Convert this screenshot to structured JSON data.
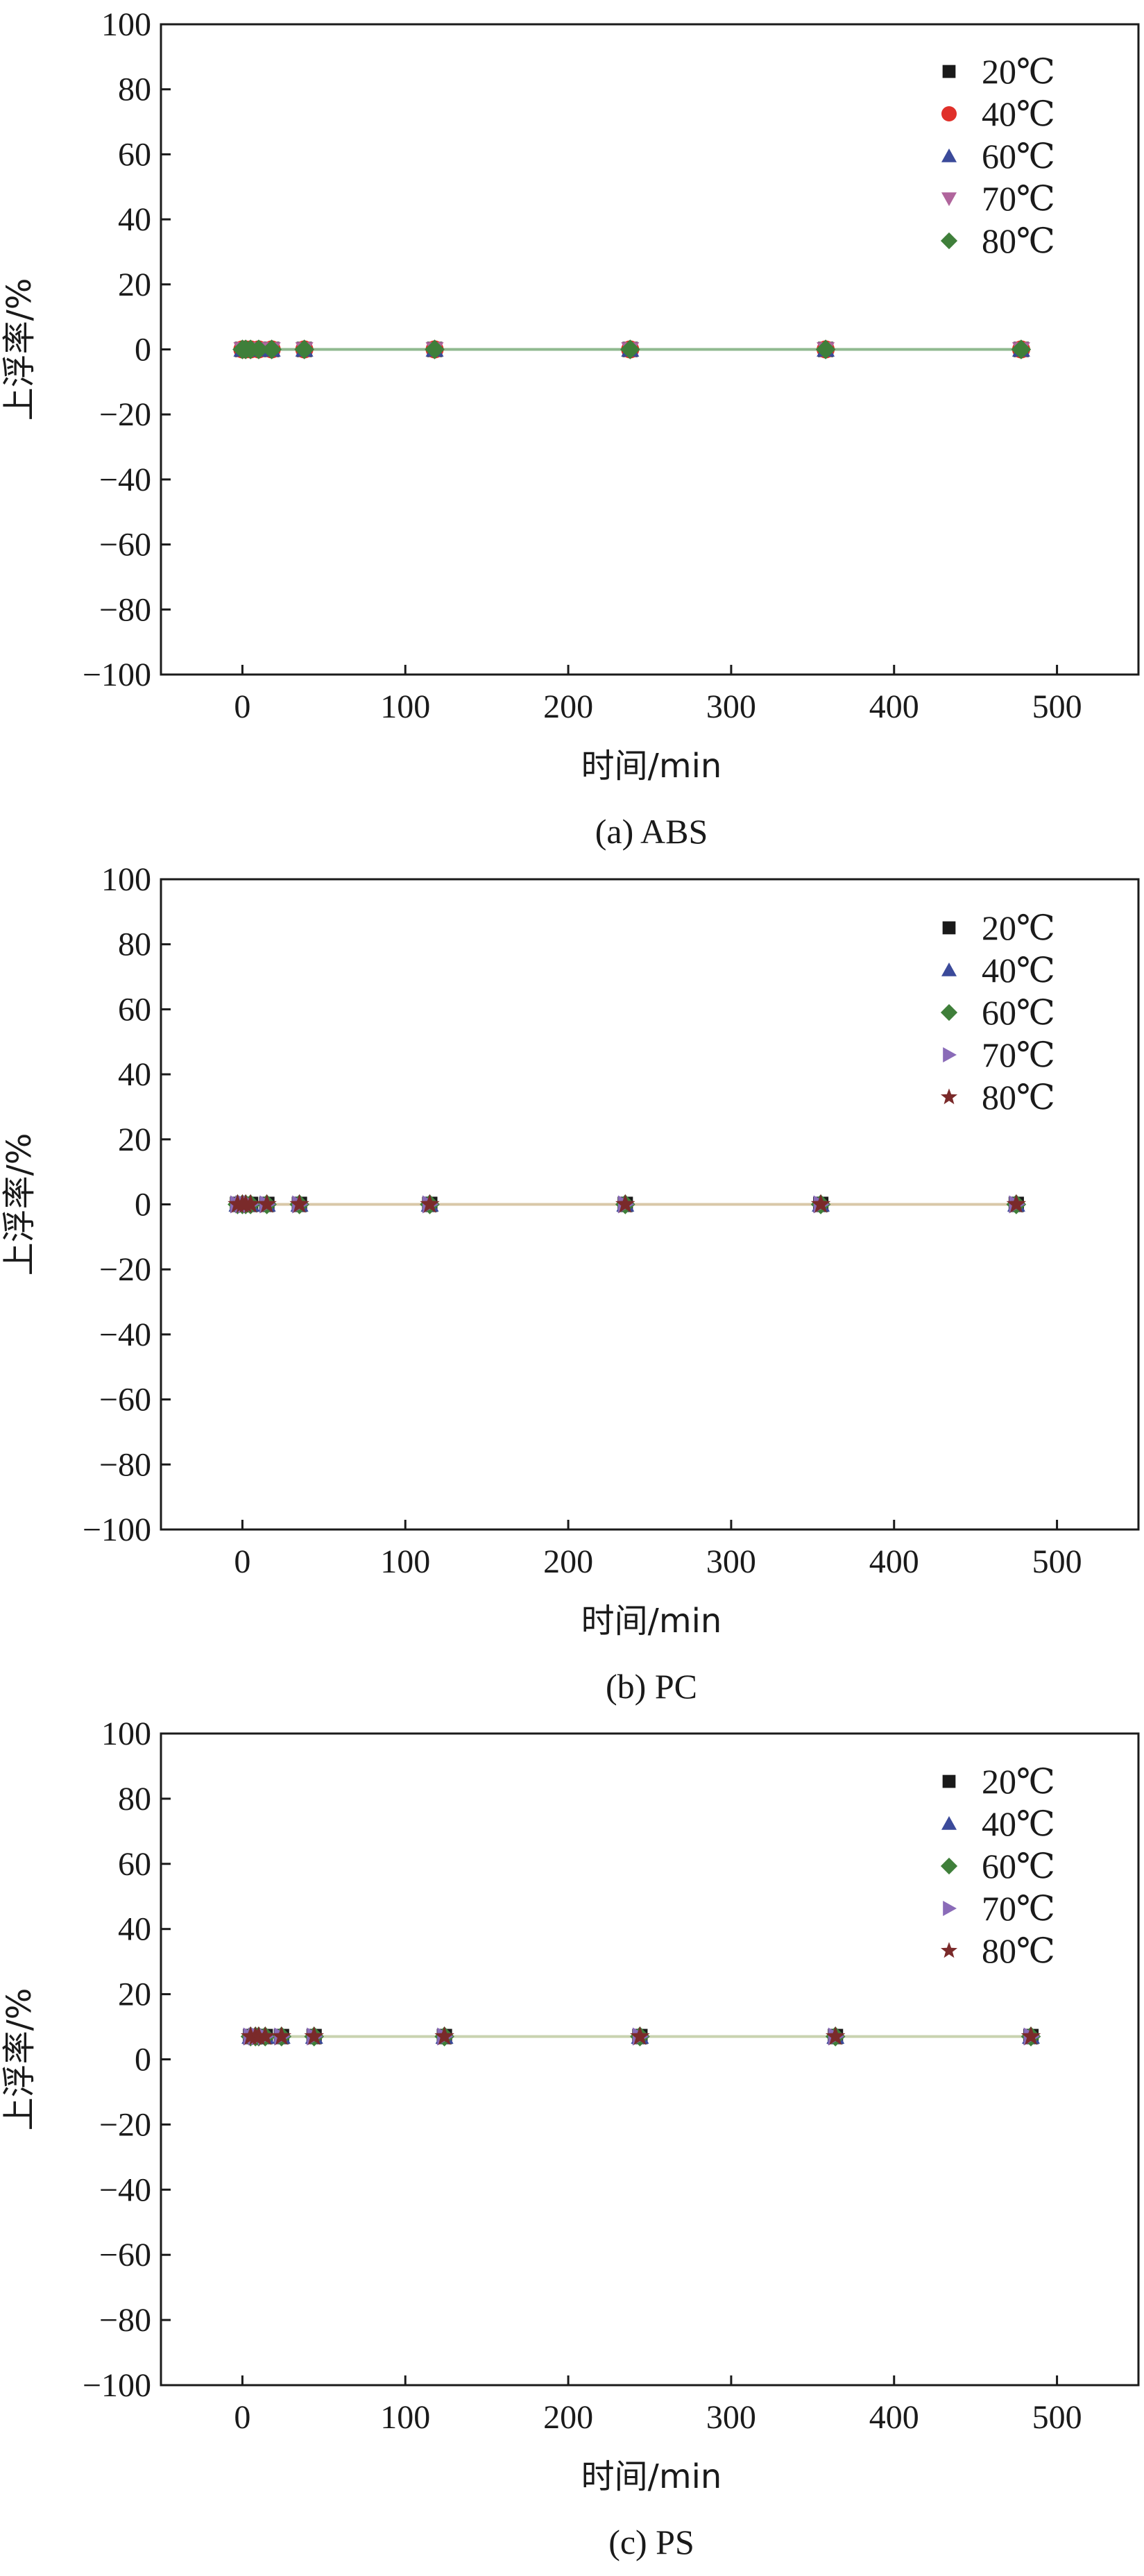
{
  "chart_data": [
    {
      "type": "scatter",
      "caption": "(a) ABS",
      "xlabel": "时间/min",
      "ylabel": "上浮率/%",
      "xlim": [
        -50,
        550
      ],
      "ylim": [
        -100,
        100
      ],
      "xticks": [
        0,
        100,
        200,
        300,
        400,
        500
      ],
      "yticks": [
        100,
        80,
        60,
        40,
        20,
        0,
        -20,
        -40,
        -60,
        -80,
        -100
      ],
      "legend_position": "top-right",
      "connect_line_color": "#8fb98f",
      "series": [
        {
          "name": "20℃",
          "marker": "square",
          "color": "#1a1a1a",
          "x": [
            0,
            2,
            5,
            10,
            18,
            38,
            118,
            238,
            358,
            478
          ],
          "y": [
            0,
            0,
            0,
            0,
            0,
            0,
            0,
            0,
            0,
            0
          ]
        },
        {
          "name": "40℃",
          "marker": "circle",
          "color": "#e0302a",
          "x": [
            0,
            2,
            5,
            10,
            18,
            38,
            118,
            238,
            358,
            478
          ],
          "y": [
            0,
            0,
            0,
            0,
            0,
            0,
            0,
            0,
            0,
            0
          ]
        },
        {
          "name": "60℃",
          "marker": "triangle-up",
          "color": "#3b4a9a",
          "x": [
            0,
            2,
            5,
            10,
            18,
            38,
            118,
            238,
            358,
            478
          ],
          "y": [
            0,
            0,
            0,
            0,
            0,
            0,
            0,
            0,
            0,
            0
          ]
        },
        {
          "name": "70℃",
          "marker": "triangle-down",
          "color": "#b0659c",
          "x": [
            0,
            2,
            5,
            10,
            18,
            38,
            118,
            238,
            358,
            478
          ],
          "y": [
            0,
            0,
            0,
            0,
            0,
            0,
            0,
            0,
            0,
            0
          ]
        },
        {
          "name": "80℃",
          "marker": "diamond",
          "color": "#3f7f3a",
          "x": [
            0,
            2,
            5,
            10,
            18,
            38,
            118,
            238,
            358,
            478
          ],
          "y": [
            0,
            0,
            0,
            0,
            0,
            0,
            0,
            0,
            0,
            0
          ]
        }
      ]
    },
    {
      "type": "scatter",
      "caption": "(b) PC",
      "xlabel": "时间/min",
      "ylabel": "上浮率/%",
      "xlim": [
        -50,
        550
      ],
      "ylim": [
        -100,
        100
      ],
      "xticks": [
        0,
        100,
        200,
        300,
        400,
        500
      ],
      "yticks": [
        100,
        80,
        60,
        40,
        20,
        0,
        -20,
        -40,
        -60,
        -80,
        -100
      ],
      "legend_position": "top-right",
      "connect_line_color": "#d9c8a8",
      "series": [
        {
          "name": "20℃",
          "marker": "square",
          "color": "#1a1a1a",
          "x": [
            -3,
            0,
            2,
            5,
            15,
            35,
            115,
            235,
            355,
            475
          ],
          "y": [
            0,
            0,
            0,
            0,
            0,
            0,
            0,
            0,
            0,
            0
          ]
        },
        {
          "name": "40℃",
          "marker": "triangle-up",
          "color": "#3b4a9a",
          "x": [
            -3,
            0,
            2,
            5,
            15,
            35,
            115,
            235,
            355,
            475
          ],
          "y": [
            0,
            0,
            0,
            0,
            0,
            0,
            0,
            0,
            0,
            0
          ]
        },
        {
          "name": "60℃",
          "marker": "diamond",
          "color": "#3f7f3a",
          "x": [
            -3,
            0,
            2,
            5,
            15,
            35,
            115,
            235,
            355,
            475
          ],
          "y": [
            0,
            0,
            0,
            0,
            0,
            0,
            0,
            0,
            0,
            0
          ]
        },
        {
          "name": "70℃",
          "marker": "triangle-right",
          "color": "#8a6bb8",
          "x": [
            -3,
            0,
            2,
            5,
            15,
            35,
            115,
            235,
            355,
            475
          ],
          "y": [
            0,
            0,
            0,
            0,
            0,
            0,
            0,
            0,
            0,
            0
          ]
        },
        {
          "name": "80℃",
          "marker": "star",
          "color": "#7a2a2a",
          "x": [
            -3,
            0,
            2,
            5,
            15,
            35,
            115,
            235,
            355,
            475
          ],
          "y": [
            0,
            0,
            0,
            0,
            0,
            0,
            0,
            0,
            0,
            0
          ]
        }
      ]
    },
    {
      "type": "scatter",
      "caption": "(c) PS",
      "xlabel": "时间/min",
      "ylabel": "上浮率/%",
      "xlim": [
        -50,
        550
      ],
      "ylim": [
        -100,
        100
      ],
      "xticks": [
        0,
        100,
        200,
        300,
        400,
        500
      ],
      "yticks": [
        100,
        80,
        60,
        40,
        20,
        0,
        -20,
        -40,
        -60,
        -80,
        -100
      ],
      "legend_position": "top-right",
      "connect_line_color": "#c9d3b0",
      "series": [
        {
          "name": "20℃",
          "marker": "square",
          "color": "#1a1a1a",
          "x": [
            5,
            8,
            10,
            14,
            24,
            44,
            124,
            244,
            364,
            484
          ],
          "y": [
            7,
            7,
            7,
            7,
            7,
            7,
            7,
            7,
            7,
            7
          ]
        },
        {
          "name": "40℃",
          "marker": "triangle-up",
          "color": "#3b4a9a",
          "x": [
            5,
            8,
            10,
            14,
            24,
            44,
            124,
            244,
            364,
            484
          ],
          "y": [
            7,
            7,
            7,
            7,
            7,
            7,
            7,
            7,
            7,
            7
          ]
        },
        {
          "name": "60℃",
          "marker": "diamond",
          "color": "#3f7f3a",
          "x": [
            5,
            8,
            10,
            14,
            24,
            44,
            124,
            244,
            364,
            484
          ],
          "y": [
            7,
            7,
            7,
            7,
            7,
            7,
            7,
            7,
            7,
            7
          ]
        },
        {
          "name": "70℃",
          "marker": "triangle-right",
          "color": "#8a6bb8",
          "x": [
            5,
            8,
            10,
            14,
            24,
            44,
            124,
            244,
            364,
            484
          ],
          "y": [
            7,
            7,
            7,
            7,
            7,
            7,
            7,
            7,
            7,
            7
          ]
        },
        {
          "name": "80℃",
          "marker": "star",
          "color": "#7a2a2a",
          "x": [
            5,
            8,
            10,
            14,
            24,
            44,
            124,
            244,
            364,
            484
          ],
          "y": [
            7,
            7,
            7,
            7,
            7,
            7,
            7,
            7,
            7,
            7
          ]
        }
      ]
    }
  ]
}
